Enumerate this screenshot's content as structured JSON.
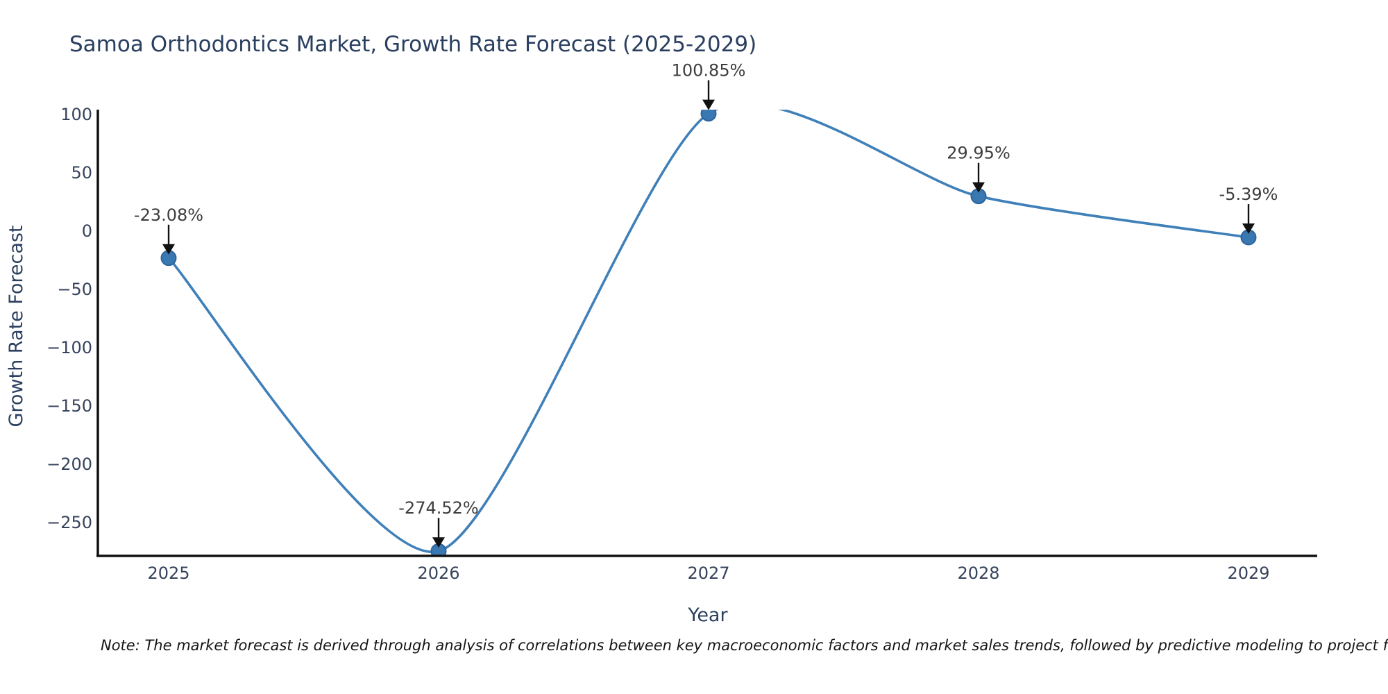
{
  "title": "Samoa Orthodontics Market, Growth Rate Forecast (2025-2029)",
  "note": "Note: The market forecast is derived through analysis of correlations between key macroeconomic factors and market sales trends, followed by predictive modeling to project future sales.",
  "chart_data": {
    "type": "line",
    "title": "Samoa Orthodontics Market, Growth Rate Forecast (2025-2029)",
    "xlabel": "Year",
    "ylabel": "Growth Rate Forecast",
    "x": [
      2025,
      2026,
      2027,
      2028,
      2029
    ],
    "values": [
      -23.08,
      -274.52,
      100.85,
      29.95,
      -5.39
    ],
    "point_labels": [
      "-23.08%",
      "-274.52%",
      "100.85%",
      "29.95%",
      "-5.39%"
    ],
    "yticks": [
      100,
      50,
      0,
      -50,
      -100,
      -150,
      -200,
      -250
    ],
    "ylim": [
      -277,
      104
    ],
    "line_shape": "spline",
    "grid": false,
    "legend": false,
    "line_color": "#3f80b9",
    "marker_color": "#3a78b2",
    "marker_edge_color": "#2d649c",
    "axis_color": "#111111",
    "tick_color": "#36435c",
    "title_color": "#2a3f5f",
    "annotation_color": "#3d3d3d",
    "annotation_arrow_color": "#111111"
  }
}
